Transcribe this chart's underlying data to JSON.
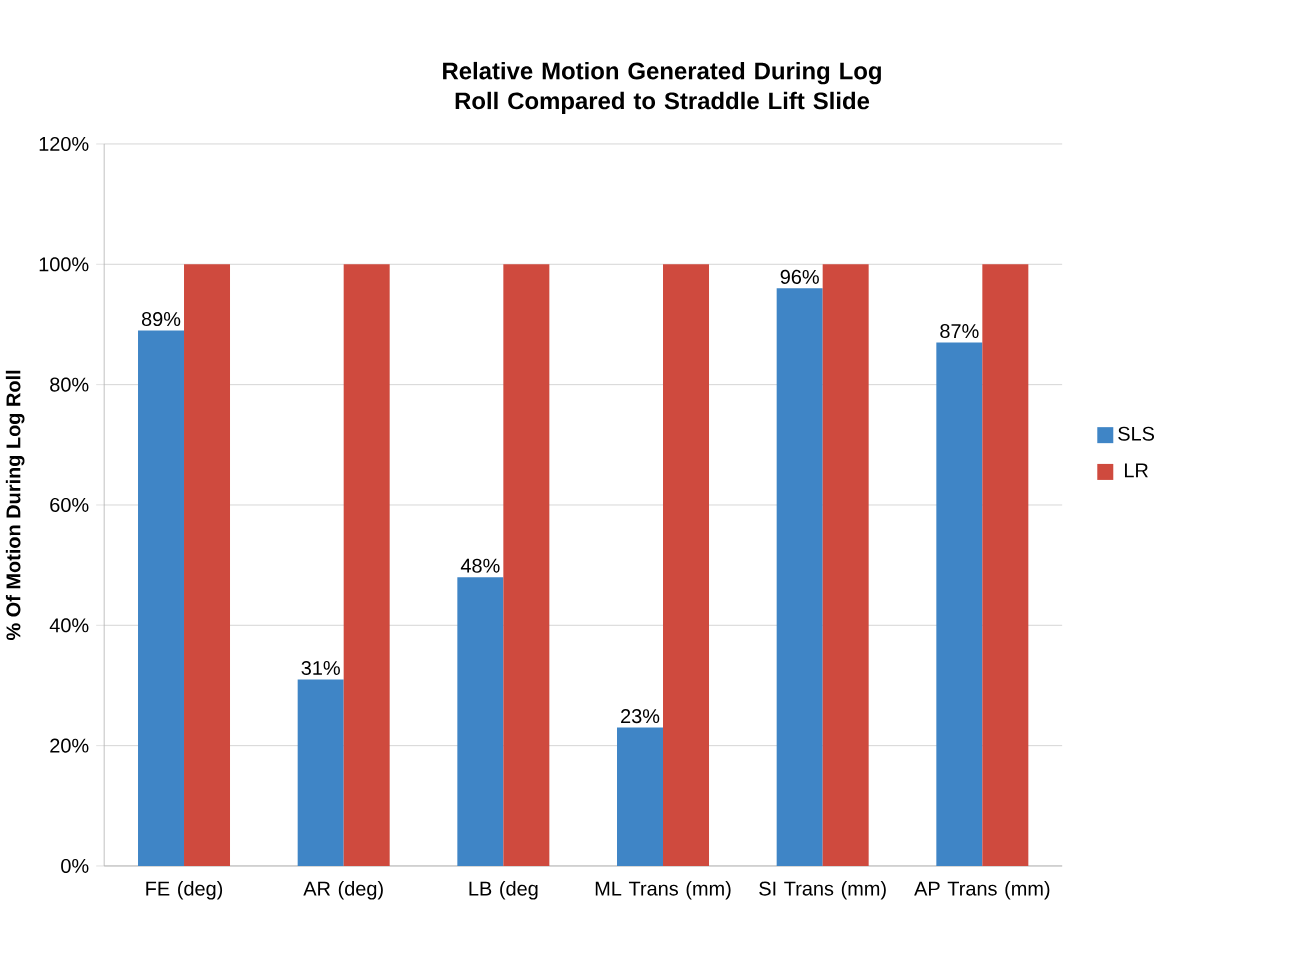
{
  "chart_data": {
    "type": "bar",
    "title": "Relative Motion Generated During Log Roll Compared to Straddle Lift Slide",
    "ylabel": "% Of Motion During Log Roll",
    "categories": [
      "FE (deg)",
      "AR (deg)",
      "LB (deg",
      "ML Trans (mm)",
      "SI Trans (mm)",
      "AP Trans (mm)"
    ],
    "series": [
      {
        "name": "SLS",
        "color": "#3f85c6",
        "values": [
          89,
          31,
          48,
          23,
          96,
          87
        ],
        "value_labels": [
          "89%",
          "31%",
          "48%",
          "23%",
          "96%",
          "87%"
        ]
      },
      {
        "name": "LR",
        "color": "#cf4a3e",
        "values": [
          100,
          100,
          100,
          100,
          100,
          100
        ]
      }
    ],
    "ylim": [
      0,
      120
    ],
    "yticks": [
      {
        "value": 0,
        "label": "0%"
      },
      {
        "value": 20,
        "label": "20%"
      },
      {
        "value": 40,
        "label": "40%"
      },
      {
        "value": 60,
        "label": "60%"
      },
      {
        "value": 80,
        "label": "80%"
      },
      {
        "value": 100,
        "label": "100%"
      },
      {
        "value": 120,
        "label": "120%"
      }
    ],
    "grid": "y",
    "legend": "right"
  }
}
